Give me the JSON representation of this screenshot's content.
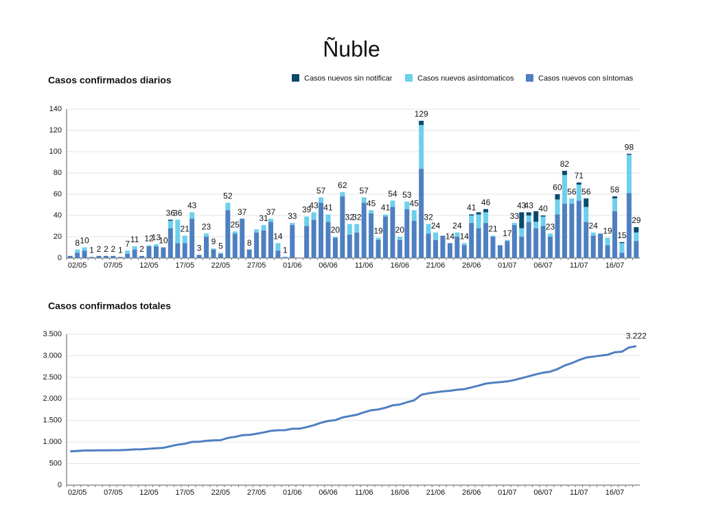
{
  "title": "Ñuble",
  "chart_data": [
    {
      "type": "bar",
      "stacked": true,
      "title": "Casos confirmados diarios",
      "legend": "top-right",
      "grid": true,
      "categories": [
        null,
        "02/05",
        null,
        null,
        null,
        null,
        "07/05",
        null,
        null,
        null,
        null,
        "12/05",
        null,
        null,
        null,
        null,
        "17/05",
        null,
        null,
        null,
        null,
        "22/05",
        null,
        null,
        null,
        null,
        "27/05",
        null,
        null,
        null,
        null,
        "01/06",
        null,
        null,
        null,
        null,
        "06/06",
        null,
        null,
        null,
        null,
        "11/06",
        null,
        null,
        null,
        null,
        "16/06",
        null,
        null,
        null,
        null,
        "21/06",
        null,
        null,
        null,
        null,
        "26/06",
        null,
        null,
        null,
        null,
        "01/07",
        null,
        null,
        null,
        null,
        "06/07",
        null,
        null,
        null,
        null,
        "11/07",
        null,
        null,
        null,
        null,
        "16/07",
        null,
        null,
        null
      ],
      "series": [
        {
          "name": "Casos nuevos con síntomas",
          "color": "#4e7fc1",
          "values": [
            2,
            5,
            7,
            1,
            2,
            2,
            2,
            1,
            4,
            8,
            2,
            11,
            11,
            10,
            28,
            14,
            14,
            37,
            3,
            20,
            8,
            4,
            45,
            23,
            37,
            8,
            24,
            26,
            34,
            7,
            1,
            31,
            0,
            30,
            36,
            52,
            34,
            19,
            58,
            22,
            24,
            52,
            42,
            17,
            39,
            48,
            17,
            46,
            35,
            84,
            23,
            17,
            21,
            14,
            20,
            12,
            33,
            28,
            33,
            20,
            12,
            16,
            31,
            20,
            34,
            28,
            30,
            20,
            41,
            51,
            51,
            54,
            34,
            21,
            23,
            12,
            44,
            5,
            61,
            16
          ]
        },
        {
          "name": "Casos nuevos asíntomaticos",
          "color": "#6dd0ec",
          "values": [
            0,
            3,
            3,
            0,
            0,
            0,
            0,
            0,
            3,
            3,
            0,
            1,
            2,
            0,
            7,
            22,
            7,
            6,
            0,
            3,
            1,
            1,
            7,
            2,
            0,
            0,
            3,
            5,
            3,
            7,
            0,
            2,
            0,
            9,
            7,
            5,
            7,
            1,
            4,
            10,
            8,
            5,
            3,
            2,
            2,
            6,
            3,
            7,
            10,
            41,
            9,
            7,
            0,
            0,
            4,
            2,
            7,
            13,
            10,
            1,
            0,
            1,
            2,
            8,
            6,
            6,
            9,
            3,
            14,
            27,
            5,
            15,
            14,
            3,
            0,
            7,
            12,
            9,
            36,
            8
          ]
        },
        {
          "name": "Casos nuevos sin notificar",
          "color": "#0b4a6e",
          "values": [
            0,
            0,
            0,
            0,
            0,
            0,
            0,
            0,
            0,
            0,
            0,
            0,
            0,
            0,
            1,
            0,
            0,
            0,
            0,
            0,
            0,
            0,
            0,
            0,
            0,
            0,
            0,
            0,
            0,
            0,
            0,
            0,
            0,
            0,
            0,
            0,
            0,
            0,
            0,
            0,
            0,
            0,
            0,
            0,
            0,
            0,
            0,
            0,
            0,
            4,
            0,
            0,
            0,
            0,
            0,
            0,
            1,
            2,
            3,
            0,
            0,
            0,
            0,
            15,
            3,
            10,
            1,
            0,
            5,
            4,
            0,
            2,
            8,
            0,
            0,
            0,
            2,
            1,
            1,
            5
          ]
        }
      ],
      "total_labels": [
        null,
        8,
        10,
        1,
        2,
        2,
        2,
        1,
        7,
        11,
        2,
        12,
        13,
        10,
        36,
        36,
        21,
        43,
        3,
        23,
        9,
        5,
        52,
        25,
        37,
        8,
        null,
        31,
        37,
        14,
        1,
        33,
        null,
        39,
        43,
        57,
        41,
        20,
        62,
        32,
        32,
        57,
        45,
        19,
        41,
        54,
        20,
        53,
        45,
        129,
        32,
        24,
        null,
        14,
        24,
        14,
        41,
        null,
        46,
        21,
        null,
        17,
        33,
        43,
        43,
        null,
        40,
        23,
        60,
        82,
        56,
        71,
        56,
        24,
        null,
        19,
        58,
        15,
        98,
        29
      ],
      "ylim": [
        0,
        140
      ],
      "yticks": [
        0,
        20,
        40,
        60,
        80,
        100,
        120,
        140
      ]
    },
    {
      "type": "line",
      "title": "Casos confirmados totales",
      "grid": true,
      "color": "#4e7fc1",
      "categories": [
        null,
        "02/05",
        null,
        null,
        null,
        null,
        "07/05",
        null,
        null,
        null,
        null,
        "12/05",
        null,
        null,
        null,
        null,
        "17/05",
        null,
        null,
        null,
        null,
        "22/05",
        null,
        null,
        null,
        null,
        "27/05",
        null,
        null,
        null,
        null,
        "01/06",
        null,
        null,
        null,
        null,
        "06/06",
        null,
        null,
        null,
        null,
        "11/06",
        null,
        null,
        null,
        null,
        "16/06",
        null,
        null,
        null,
        null,
        "21/06",
        null,
        null,
        null,
        null,
        "26/06",
        null,
        null,
        null,
        null,
        "01/07",
        null,
        null,
        null,
        null,
        "06/07",
        null,
        null,
        null,
        null,
        "11/07",
        null,
        null,
        null,
        null,
        "16/07",
        null,
        null,
        null
      ],
      "values": [
        785,
        793,
        803,
        804,
        806,
        808,
        810,
        811,
        818,
        829,
        831,
        843,
        856,
        866,
        902,
        938,
        959,
        1002,
        1005,
        1028,
        1037,
        1042,
        1094,
        1119,
        1156,
        1164,
        1191,
        1222,
        1259,
        1273,
        1274,
        1307,
        1307,
        1346,
        1389,
        1446,
        1487,
        1507,
        1569,
        1601,
        1633,
        1690,
        1735,
        1754,
        1795,
        1849,
        1869,
        1922,
        1967,
        2096,
        2128,
        2152,
        2173,
        2187,
        2211,
        2225,
        2266,
        2309,
        2355,
        2376,
        2388,
        2405,
        2438,
        2481,
        2524,
        2568,
        2608,
        2631,
        2691,
        2773,
        2829,
        2900,
        2956,
        2980,
        3003,
        3022,
        3080,
        3095,
        3193,
        3222
      ],
      "value_labels": [
        null,
        null,
        null,
        null,
        null,
        null,
        null,
        null,
        null,
        null,
        null,
        null,
        null,
        null,
        null,
        null,
        null,
        null,
        null,
        null,
        null,
        null,
        null,
        null,
        null,
        null,
        null,
        null,
        null,
        null,
        null,
        null,
        null,
        null,
        null,
        null,
        null,
        null,
        null,
        null,
        null,
        null,
        null,
        null,
        null,
        null,
        null,
        null,
        null,
        null,
        null,
        null,
        null,
        null,
        null,
        null,
        null,
        null,
        null,
        null,
        null,
        null,
        null,
        null,
        null,
        null,
        null,
        null,
        null,
        null,
        null,
        null,
        null,
        null,
        null,
        null,
        null,
        null,
        null,
        "3.222"
      ],
      "ylim": [
        0,
        3500
      ],
      "yticks": [
        0,
        500,
        {
          "value": 1000,
          "label": "1.000"
        },
        {
          "value": 1500,
          "label": "1.500"
        },
        {
          "value": 2000,
          "label": "2.000"
        },
        {
          "value": 2500,
          "label": "2.500"
        },
        {
          "value": 3000,
          "label": "3.000"
        },
        {
          "value": 3500,
          "label": "3.500"
        }
      ]
    }
  ]
}
